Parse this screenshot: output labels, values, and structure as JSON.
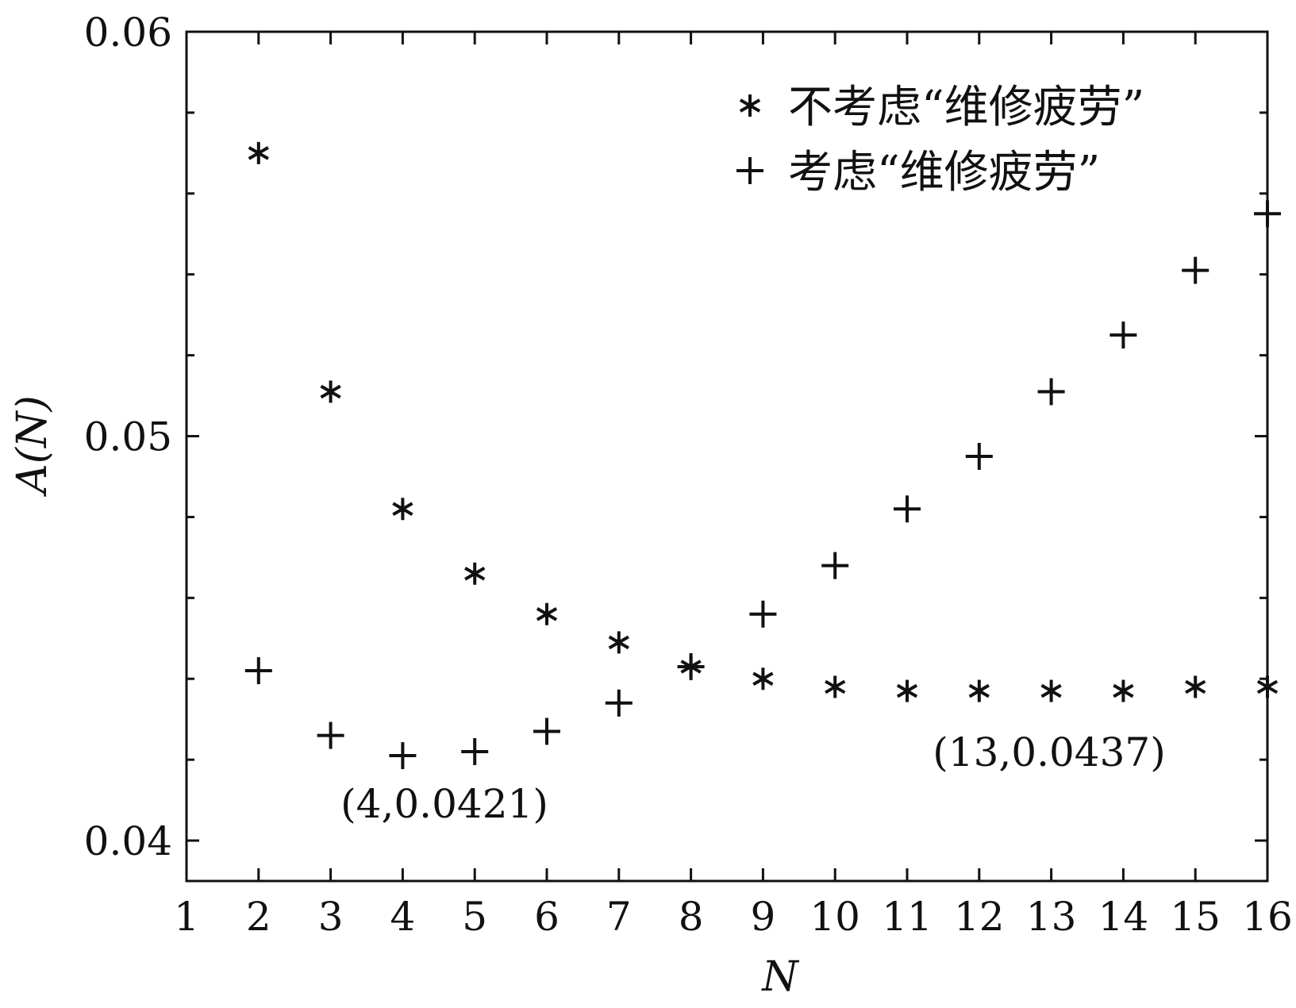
{
  "chart_data": {
    "type": "scatter",
    "xlabel": "N",
    "ylabel": "A(N)",
    "xlim": [
      1,
      16
    ],
    "ylim": [
      0.039,
      0.06
    ],
    "x_ticks": [
      1,
      2,
      3,
      4,
      5,
      6,
      7,
      8,
      9,
      10,
      11,
      12,
      13,
      14,
      15,
      16
    ],
    "y_ticks": [
      0.04,
      0.05,
      0.06
    ],
    "y_tick_labels": [
      "0.04",
      "0.05",
      "0.06"
    ],
    "grid": false,
    "legend_position": "top-right",
    "series": [
      {
        "name": "不考虑“维修疲劳”",
        "marker": "asterisk",
        "x": [
          2,
          3,
          4,
          5,
          6,
          7,
          8,
          9,
          10,
          11,
          12,
          13,
          14,
          15,
          16
        ],
        "y": [
          0.057,
          0.0511,
          0.0482,
          0.0466,
          0.0456,
          0.0449,
          0.0443,
          0.044,
          0.0438,
          0.0437,
          0.0437,
          0.0437,
          0.0437,
          0.0438,
          0.0438
        ]
      },
      {
        "name": "考虑“维修疲劳”",
        "marker": "plus",
        "x": [
          2,
          3,
          4,
          5,
          6,
          7,
          8,
          9,
          10,
          11,
          12,
          13,
          14,
          15,
          16
        ],
        "y": [
          0.0442,
          0.0426,
          0.0421,
          0.0422,
          0.0427,
          0.0434,
          0.0443,
          0.0456,
          0.0468,
          0.0482,
          0.0495,
          0.0511,
          0.0525,
          0.0541,
          0.0555
        ]
      }
    ],
    "annotations": [
      {
        "text": "(4,0.0421)",
        "x": 4,
        "y": 0.0421
      },
      {
        "text": "(13,0.0437)",
        "x": 13,
        "y": 0.0437
      }
    ]
  }
}
